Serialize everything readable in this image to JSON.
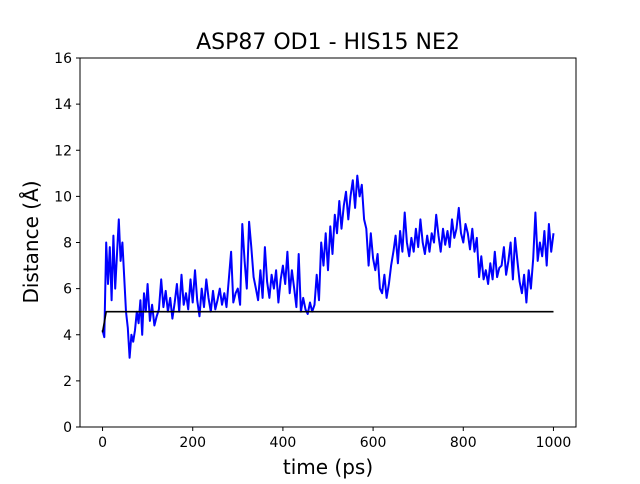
{
  "chart_data": {
    "type": "line",
    "title": "ASP87 OD1 - HIS15 NE2",
    "xlabel": "time (ps)",
    "ylabel": "Distance (Å)",
    "xlim": [
      -50,
      1050
    ],
    "ylim": [
      0,
      16
    ],
    "xticks": [
      0,
      200,
      400,
      600,
      800,
      1000
    ],
    "yticks": [
      0,
      2,
      4,
      6,
      8,
      10,
      12,
      14,
      16
    ],
    "grid": false,
    "legend": "none",
    "series": [
      {
        "color": "#0000ff",
        "x": [
          0,
          4,
          8,
          12,
          16,
          20,
          24,
          28,
          32,
          36,
          40,
          44,
          48,
          52,
          56,
          60,
          64,
          68,
          72,
          76,
          80,
          84,
          88,
          92,
          96,
          100,
          105,
          110,
          115,
          120,
          125,
          130,
          135,
          140,
          145,
          150,
          155,
          160,
          165,
          170,
          175,
          180,
          185,
          190,
          195,
          200,
          205,
          210,
          215,
          220,
          225,
          230,
          235,
          240,
          245,
          250,
          255,
          260,
          265,
          270,
          275,
          280,
          285,
          290,
          295,
          300,
          305,
          310,
          315,
          320,
          325,
          330,
          335,
          340,
          345,
          350,
          355,
          360,
          365,
          370,
          375,
          380,
          385,
          390,
          395,
          400,
          405,
          410,
          415,
          420,
          425,
          430,
          435,
          440,
          445,
          450,
          455,
          460,
          465,
          470,
          475,
          480,
          485,
          490,
          495,
          500,
          505,
          510,
          515,
          520,
          525,
          530,
          535,
          540,
          545,
          550,
          555,
          560,
          565,
          570,
          575,
          580,
          585,
          590,
          595,
          600,
          605,
          610,
          615,
          620,
          625,
          630,
          635,
          640,
          645,
          650,
          655,
          660,
          665,
          670,
          675,
          680,
          685,
          690,
          695,
          700,
          705,
          710,
          715,
          720,
          725,
          730,
          735,
          740,
          745,
          750,
          755,
          760,
          765,
          770,
          775,
          780,
          785,
          790,
          795,
          800,
          805,
          810,
          815,
          820,
          825,
          830,
          835,
          840,
          845,
          850,
          855,
          860,
          865,
          870,
          875,
          880,
          885,
          890,
          895,
          900,
          905,
          910,
          915,
          920,
          925,
          930,
          935,
          940,
          945,
          950,
          955,
          960,
          965,
          970,
          975,
          980,
          985,
          990,
          995,
          1000
        ],
        "y": [
          4.2,
          3.9,
          8.0,
          6.2,
          7.8,
          5.5,
          8.3,
          6.0,
          7.5,
          9.0,
          7.2,
          8.0,
          6.5,
          5.0,
          4.3,
          3.0,
          4.0,
          3.7,
          4.2,
          5.0,
          4.5,
          5.5,
          4.0,
          5.8,
          5.0,
          6.2,
          4.6,
          5.3,
          4.4,
          4.8,
          5.1,
          6.4,
          5.2,
          5.9,
          5.0,
          5.6,
          4.7,
          5.4,
          6.2,
          5.0,
          6.6,
          5.3,
          5.8,
          5.1,
          6.4,
          5.4,
          6.8,
          5.5,
          4.8,
          6.0,
          5.2,
          6.4,
          5.6,
          5.0,
          5.9,
          5.1,
          5.5,
          6.0,
          5.3,
          5.8,
          5.2,
          6.4,
          7.6,
          5.4,
          5.8,
          6.0,
          5.3,
          8.8,
          7.2,
          6.0,
          8.9,
          7.8,
          6.5,
          6.0,
          5.5,
          6.8,
          5.6,
          7.8,
          6.3,
          5.6,
          6.6,
          6.0,
          6.8,
          5.4,
          6.4,
          7.0,
          6.2,
          7.6,
          5.8,
          6.8,
          6.0,
          5.2,
          7.5,
          5.0,
          5.6,
          5.1,
          4.9,
          5.4,
          5.0,
          5.3,
          6.6,
          5.5,
          8.0,
          7.0,
          8.4,
          6.8,
          8.7,
          7.5,
          9.2,
          8.4,
          9.8,
          8.6,
          9.6,
          10.2,
          9.0,
          10.0,
          10.7,
          9.5,
          10.9,
          10.0,
          10.5,
          9.0,
          8.6,
          7.0,
          8.4,
          7.3,
          6.8,
          7.5,
          6.0,
          5.8,
          6.6,
          5.6,
          6.2,
          7.0,
          7.6,
          8.3,
          7.1,
          8.5,
          7.6,
          9.3,
          8.0,
          7.4,
          8.2,
          7.6,
          8.6,
          7.8,
          9.0,
          8.0,
          7.5,
          8.3,
          7.6,
          8.4,
          8.0,
          9.2,
          8.3,
          7.6,
          8.6,
          7.9,
          8.5,
          7.8,
          9.0,
          8.2,
          8.6,
          9.5,
          8.4,
          8.0,
          8.8,
          8.4,
          7.7,
          8.6,
          7.6,
          8.2,
          6.5,
          7.4,
          6.4,
          6.8,
          6.2,
          7.1,
          6.4,
          7.6,
          6.5,
          6.9,
          7.0,
          7.8,
          6.6,
          7.2,
          8.0,
          6.4,
          8.2,
          7.2,
          6.3,
          5.8,
          6.6,
          5.4,
          6.8,
          6.0,
          7.3,
          9.3,
          7.2,
          8.0,
          7.4,
          8.5,
          7.0,
          8.8,
          7.6,
          8.4
        ]
      },
      {
        "color": "#000000",
        "x": [
          0,
          8,
          1000
        ],
        "y": [
          4.1,
          5.0,
          5.0
        ]
      }
    ]
  }
}
